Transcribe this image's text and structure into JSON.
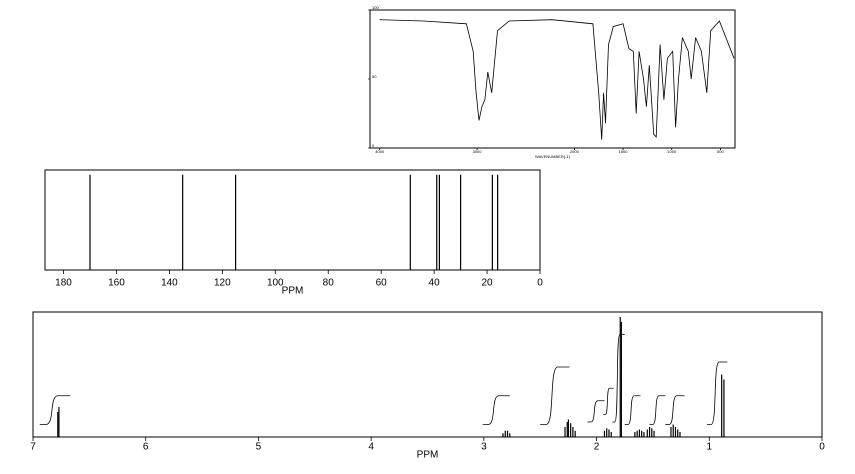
{
  "chart_data": [
    {
      "type": "line",
      "xlabel": "WAVENUMBER(-1)",
      "color": "#000000",
      "xlim": [
        4100,
        350
      ],
      "xticks": [
        4000,
        3000,
        2000,
        1500,
        1000,
        500
      ],
      "ylim": [
        0,
        100
      ],
      "yticks": [
        0,
        50,
        100
      ],
      "x": [
        4000,
        3550,
        3110,
        3040,
        3010,
        2980,
        2950,
        2920,
        2890,
        2850,
        2790,
        2670,
        2230,
        1810,
        1750,
        1720,
        1700,
        1680,
        1650,
        1600,
        1500,
        1440,
        1395,
        1365,
        1335,
        1290,
        1260,
        1230,
        1185,
        1160,
        1120,
        1080,
        1045,
        990,
        960,
        930,
        890,
        830,
        800,
        755,
        695,
        640,
        600,
        510,
        360
      ],
      "values": [
        93,
        92,
        90,
        70,
        40,
        20,
        30,
        35,
        55,
        40,
        85,
        92,
        93,
        90,
        40,
        6,
        40,
        18,
        75,
        88,
        90,
        72,
        70,
        25,
        70,
        50,
        30,
        60,
        10,
        8,
        75,
        35,
        65,
        70,
        15,
        50,
        80,
        70,
        50,
        80,
        70,
        40,
        85,
        92,
        65
      ]
    },
    {
      "type": "stick",
      "xlabel": "PPM",
      "color": "#000000",
      "xlim": [
        187,
        0
      ],
      "xticks": [
        180,
        160,
        140,
        120,
        100,
        80,
        60,
        40,
        20,
        0
      ],
      "ylim": [
        0,
        105
      ],
      "x": [
        170,
        135,
        115,
        49,
        39,
        38,
        30,
        18,
        16
      ],
      "values": [
        100,
        100,
        100,
        100,
        100,
        100,
        100,
        100,
        100
      ]
    },
    {
      "type": "stick",
      "xlabel": "PPM",
      "color": "#000000",
      "xlim": [
        7,
        0
      ],
      "xticks": [
        7,
        6,
        5,
        4,
        3,
        2,
        1,
        0
      ],
      "ylim": [
        0,
        100
      ],
      "x": [
        6.78,
        6.77,
        2.83,
        2.81,
        2.79,
        2.77,
        2.28,
        2.26,
        2.25,
        2.23,
        2.21,
        2.19,
        1.93,
        1.91,
        1.89,
        1.87,
        1.79,
        1.78,
        1.66,
        1.64,
        1.62,
        1.6,
        1.58,
        1.55,
        1.53,
        1.51,
        1.49,
        1.34,
        1.32,
        1.3,
        1.28,
        1.26,
        0.89,
        0.87
      ],
      "values": [
        20,
        24,
        3,
        5,
        5,
        3,
        8,
        12,
        14,
        11,
        8,
        5,
        5,
        7,
        6,
        4,
        96,
        92,
        4,
        5,
        6,
        5,
        4,
        6,
        8,
        7,
        5,
        8,
        10,
        8,
        6,
        4,
        50,
        46
      ],
      "integrals": [
        {
          "from": 6.94,
          "to": 6.67,
          "low": 10,
          "high": 33
        },
        {
          "from": 3.01,
          "to": 2.77,
          "low": 10,
          "high": 33
        },
        {
          "from": 2.5,
          "to": 2.24,
          "low": 10,
          "high": 56
        },
        {
          "from": 2.08,
          "to": 1.93,
          "low": 12,
          "high": 29
        },
        {
          "from": 1.94,
          "to": 1.85,
          "low": 18,
          "high": 39
        },
        {
          "from": 1.86,
          "to": 1.75,
          "low": 12,
          "high": 82
        },
        {
          "from": 1.75,
          "to": 1.61,
          "low": 10,
          "high": 33
        },
        {
          "from": 1.53,
          "to": 1.39,
          "low": 10,
          "high": 33
        },
        {
          "from": 1.39,
          "to": 1.22,
          "low": 10,
          "high": 33
        },
        {
          "from": 1.02,
          "to": 0.84,
          "low": 10,
          "high": 60
        }
      ]
    }
  ]
}
